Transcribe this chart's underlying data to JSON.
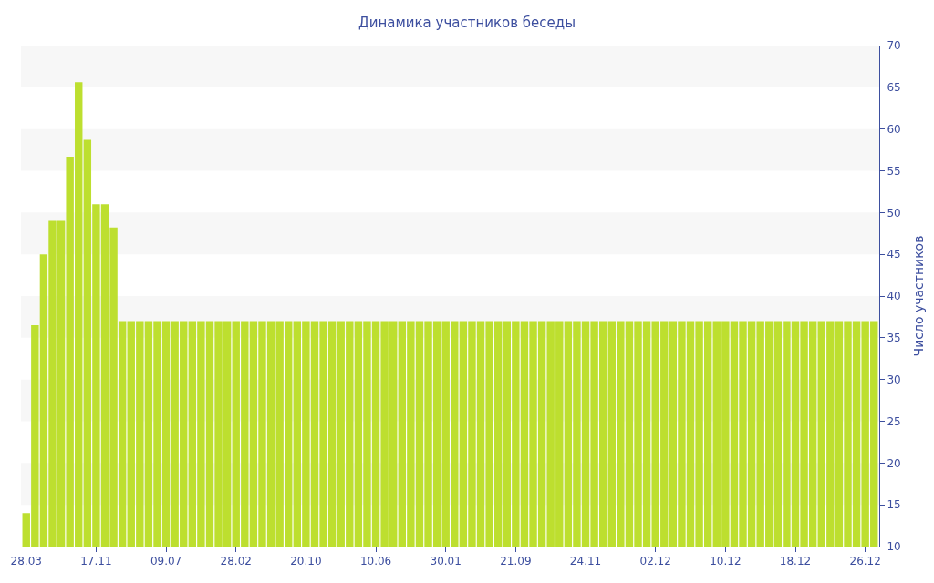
{
  "chart_data": {
    "type": "bar",
    "title": "Динамика участников беседы",
    "y2label": "Число участников",
    "categories": [
      "28.03",
      null,
      null,
      null,
      null,
      null,
      null,
      null,
      "17.11",
      null,
      null,
      null,
      null,
      null,
      null,
      null,
      "09.07",
      null,
      null,
      null,
      null,
      null,
      null,
      null,
      "28.02",
      null,
      null,
      null,
      null,
      null,
      null,
      null,
      "20.10",
      null,
      null,
      null,
      null,
      null,
      null,
      null,
      "10.06",
      null,
      null,
      null,
      null,
      null,
      null,
      null,
      "30.01",
      null,
      null,
      null,
      null,
      null,
      null,
      null,
      "21.09",
      null,
      null,
      null,
      null,
      null,
      null,
      null,
      "24.11",
      null,
      null,
      null,
      null,
      null,
      null,
      null,
      "02.12",
      null,
      null,
      null,
      null,
      null,
      null,
      null,
      "10.12",
      null,
      null,
      null,
      null,
      null,
      null,
      null,
      "18.12",
      null,
      null,
      null,
      null,
      null,
      null,
      null,
      "26.12",
      null
    ],
    "series": [
      {
        "color": "#bddf2f",
        "axis": "y2",
        "values": [
          14,
          36.5,
          45,
          49,
          49,
          56.7,
          65.6,
          58.7,
          51,
          51,
          48.2,
          37,
          37,
          37,
          37,
          37,
          37,
          37,
          37,
          37,
          37,
          37,
          37,
          37,
          37,
          37,
          37,
          37,
          37,
          37,
          37,
          37,
          37,
          37,
          37,
          37,
          37,
          37,
          37,
          37,
          37,
          37,
          37,
          37,
          37,
          37,
          37,
          37,
          37,
          37,
          37,
          37,
          37,
          37,
          37,
          37,
          37,
          37,
          37,
          37,
          37,
          37,
          37,
          37,
          37,
          37,
          37,
          37,
          37,
          37,
          37,
          37,
          37,
          37,
          37,
          37,
          37,
          37,
          37,
          37,
          37,
          37,
          37,
          37,
          37,
          37,
          37,
          37,
          37,
          37,
          37,
          37,
          37,
          37,
          37,
          37,
          37,
          37
        ]
      }
    ],
    "y2lim": [
      10,
      70
    ],
    "y2ticks": [
      10,
      15,
      20,
      25,
      30,
      35,
      40,
      45,
      50,
      55,
      60,
      65,
      70
    ],
    "bands": [
      {
        "axis": "y2",
        "from": 15,
        "to": 20,
        "color": "#f7f7f7"
      },
      {
        "axis": "y2",
        "from": 25,
        "to": 30,
        "color": "#f7f7f7"
      },
      {
        "axis": "y2",
        "from": 35,
        "to": 40,
        "color": "#f7f7f7"
      },
      {
        "axis": "y2",
        "from": 45,
        "to": 50,
        "color": "#f7f7f7"
      },
      {
        "axis": "y2",
        "from": 55,
        "to": 60,
        "color": "#f7f7f7"
      },
      {
        "axis": "y2",
        "from": 65,
        "to": 70,
        "color": "#f7f7f7"
      }
    ],
    "grid": false
  }
}
